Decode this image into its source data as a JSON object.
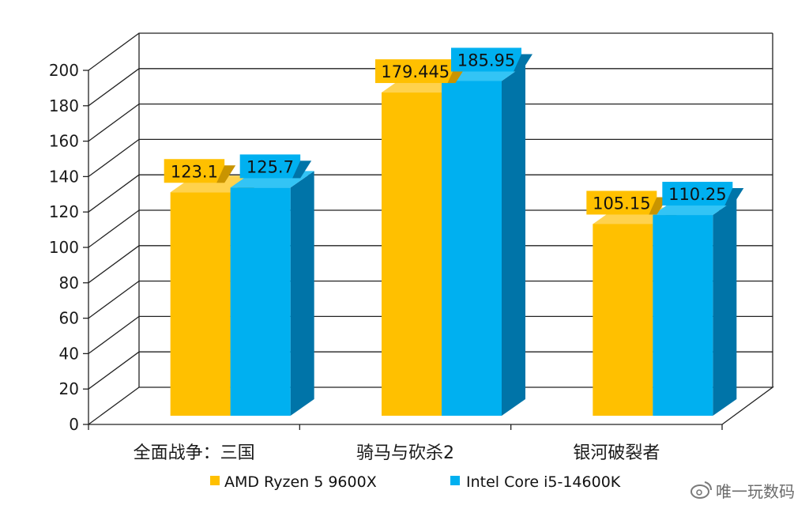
{
  "chart_data": {
    "type": "bar",
    "categories": [
      "全面战争：三国",
      "骑马与砍杀2",
      "银河破裂者"
    ],
    "series": [
      {
        "name": "AMD Ryzen 5 9600X",
        "values": [
          123.1,
          179.445,
          105.15
        ]
      },
      {
        "name": "Intel Core i5-14600K",
        "values": [
          125.7,
          185.95,
          110.25
        ]
      }
    ],
    "data_labels": [
      [
        "123.1",
        "179.445",
        "105.15"
      ],
      [
        "125.7",
        "185.95",
        "110.25"
      ]
    ],
    "yticks": [
      "0",
      "20",
      "40",
      "60",
      "80",
      "100",
      "120",
      "140",
      "160",
      "180",
      "200"
    ],
    "ylim": [
      0,
      200
    ],
    "grid": true,
    "legend_position": "bottom",
    "style": "3d-clustered-bar",
    "colors": {
      "series0": "#FFC000",
      "series0_dark": "#C99400",
      "series1": "#00B0F0",
      "series1_dark": "#0074A8",
      "grid": "#222222"
    }
  },
  "watermark": {
    "text": "唯一玩数码",
    "icon": "weibo-icon"
  }
}
